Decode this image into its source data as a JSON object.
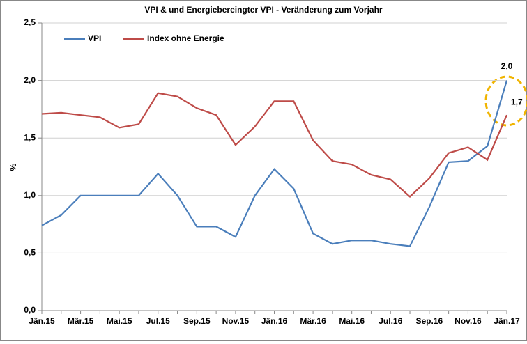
{
  "chart_data": {
    "type": "line",
    "title": "VPI & und Energiebereingter VPI - Veränderung zum Vorjahr",
    "y_label": "%",
    "categories": [
      "Jän.15",
      null,
      "Mär.15",
      null,
      "Mai.15",
      null,
      "Jul.15",
      null,
      "Sep.15",
      null,
      "Nov.15",
      null,
      "Jän.16",
      null,
      "Mär.16",
      null,
      "Mai.16",
      null,
      "Jul.16",
      null,
      "Sep.16",
      null,
      "Nov.16",
      null,
      "Jän.17"
    ],
    "series": [
      {
        "name": "VPI",
        "color": "#4a7ebb",
        "values": [
          0.74,
          0.83,
          1.0,
          1.0,
          1.0,
          1.0,
          1.19,
          1.0,
          0.73,
          0.73,
          0.64,
          1.0,
          1.23,
          1.06,
          0.67,
          0.58,
          0.61,
          0.61,
          0.58,
          0.56,
          0.9,
          1.29,
          1.3,
          1.43,
          2.0
        ],
        "value_labels": [
          null,
          null,
          null,
          null,
          null,
          null,
          null,
          null,
          null,
          null,
          null,
          null,
          null,
          null,
          null,
          null,
          null,
          null,
          null,
          null,
          null,
          null,
          null,
          null,
          "2,0"
        ]
      },
      {
        "name": "Index ohne Energie",
        "color": "#be4b48",
        "values": [
          1.71,
          1.72,
          1.7,
          1.68,
          1.59,
          1.62,
          1.89,
          1.86,
          1.76,
          1.7,
          1.44,
          1.6,
          1.82,
          1.82,
          1.48,
          1.3,
          1.27,
          1.18,
          1.14,
          0.99,
          1.15,
          1.37,
          1.42,
          1.31,
          1.7
        ],
        "value_labels": [
          null,
          null,
          null,
          null,
          null,
          null,
          null,
          null,
          null,
          null,
          null,
          null,
          null,
          null,
          null,
          null,
          null,
          null,
          null,
          null,
          null,
          null,
          null,
          null,
          "1,7"
        ]
      }
    ],
    "ylim": [
      0,
      2.5
    ],
    "yticks": [
      {
        "value": 0,
        "label": "0,0"
      },
      {
        "value": 0.5,
        "label": "0,5"
      },
      {
        "value": 1,
        "label": "1,0"
      },
      {
        "value": 1.5,
        "label": "1,5"
      },
      {
        "value": 2,
        "label": "2,0"
      },
      {
        "value": 2.5,
        "label": "2,5"
      }
    ],
    "grid": true,
    "legend": "top-left"
  }
}
